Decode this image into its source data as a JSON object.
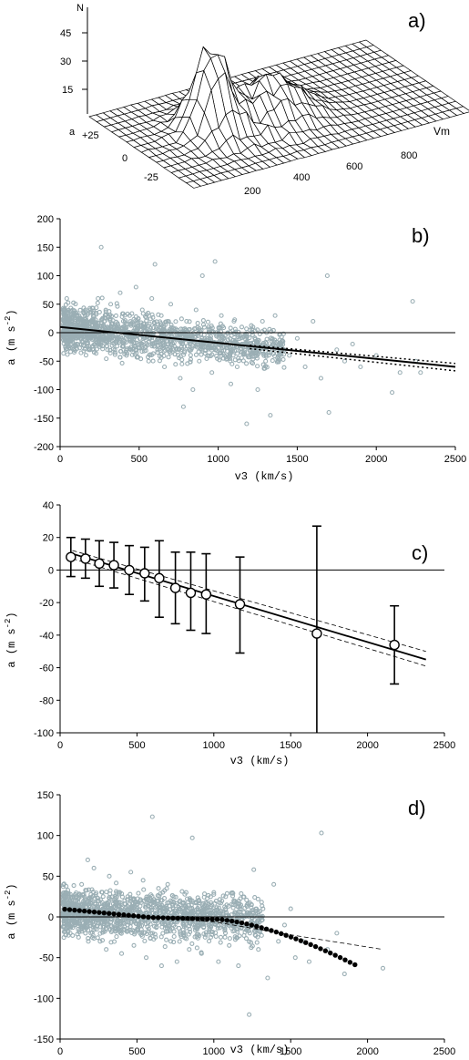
{
  "chart_data": [
    {
      "type": "surface",
      "panel_label": "a)",
      "axis_labels": {
        "z": "N",
        "y": "a",
        "x": "Vm"
      },
      "z_ticks": [
        "45",
        "30",
        "15"
      ],
      "y_ticks": [
        "+25",
        "0",
        "-25"
      ],
      "x_ticks": [
        "200",
        "400",
        "600",
        "800"
      ],
      "description_values": {
        "z_peak": 48,
        "x_peak": 300,
        "y_peak": 5
      }
    },
    {
      "type": "scatter",
      "panel_label": "b)",
      "xlabel": "v3  (km/s)",
      "ylabel": "a  (m s",
      "ylabel_exp": "-2",
      "ylabel_close": ")",
      "xlim": [
        0,
        2500
      ],
      "ylim": [
        -200,
        200
      ],
      "x_ticks": [
        "0",
        "500",
        "1000",
        "1500",
        "2000",
        "2500"
      ],
      "y_ticks": [
        "200",
        "150",
        "100",
        "50",
        "0",
        "-50",
        "-100",
        "-150",
        "-200"
      ],
      "point_color": "#9aaeb4",
      "fit_line": {
        "x": [
          0,
          2500
        ],
        "y": [
          10,
          -60
        ]
      },
      "confidence_upper": {
        "x": [
          1200,
          2500
        ],
        "y": [
          -22,
          -54
        ]
      },
      "confidence_lower": {
        "x": [
          1200,
          2500
        ],
        "y": [
          -28,
          -67
        ]
      },
      "points": [
        [
          40,
          20
        ],
        [
          60,
          -5
        ],
        [
          80,
          10
        ],
        [
          100,
          5
        ],
        [
          120,
          30
        ],
        [
          140,
          -15
        ],
        [
          160,
          40
        ],
        [
          180,
          0
        ],
        [
          200,
          20
        ],
        [
          220,
          -20
        ],
        [
          240,
          60
        ],
        [
          260,
          150
        ],
        [
          280,
          10
        ],
        [
          300,
          -30
        ],
        [
          320,
          50
        ],
        [
          340,
          5
        ],
        [
          360,
          -10
        ],
        [
          380,
          70
        ],
        [
          400,
          20
        ],
        [
          420,
          -40
        ],
        [
          440,
          30
        ],
        [
          460,
          0
        ],
        [
          480,
          80
        ],
        [
          500,
          -20
        ],
        [
          520,
          40
        ],
        [
          540,
          10
        ],
        [
          560,
          -50
        ],
        [
          580,
          60
        ],
        [
          600,
          120
        ],
        [
          620,
          -10
        ],
        [
          640,
          30
        ],
        [
          660,
          -60
        ],
        [
          680,
          20
        ],
        [
          700,
          50
        ],
        [
          720,
          -30
        ],
        [
          740,
          0
        ],
        [
          760,
          -80
        ],
        [
          780,
          -130
        ],
        [
          800,
          20
        ],
        [
          820,
          -20
        ],
        [
          840,
          -100
        ],
        [
          860,
          40
        ],
        [
          880,
          -50
        ],
        [
          900,
          100
        ],
        [
          920,
          -30
        ],
        [
          940,
          10
        ],
        [
          960,
          -70
        ],
        [
          980,
          125
        ],
        [
          1000,
          -20
        ],
        [
          1020,
          30
        ],
        [
          1040,
          -40
        ],
        [
          1060,
          0
        ],
        [
          1080,
          -90
        ],
        [
          1100,
          20
        ],
        [
          1120,
          -60
        ],
        [
          1150,
          -20
        ],
        [
          1180,
          -160
        ],
        [
          1200,
          -30
        ],
        [
          1220,
          10
        ],
        [
          1250,
          -100
        ],
        [
          1280,
          20
        ],
        [
          1300,
          -50
        ],
        [
          1330,
          -145
        ],
        [
          1360,
          30
        ],
        [
          1400,
          -20
        ],
        [
          1450,
          -40
        ],
        [
          1500,
          -10
        ],
        [
          1550,
          -60
        ],
        [
          1600,
          20
        ],
        [
          1650,
          -80
        ],
        [
          1690,
          100
        ],
        [
          1700,
          -140
        ],
        [
          1750,
          -30
        ],
        [
          1800,
          -50
        ],
        [
          1850,
          -20
        ],
        [
          1900,
          -60
        ],
        [
          2000,
          -40
        ],
        [
          2100,
          -105
        ],
        [
          2150,
          -70
        ],
        [
          2230,
          55
        ],
        [
          2250,
          -50
        ],
        [
          2280,
          -70
        ]
      ]
    },
    {
      "type": "errorbar",
      "panel_label": "c)",
      "xlabel": "v3   (km/s)",
      "ylabel": "a  (m s",
      "ylabel_exp": "-2",
      "ylabel_close": ")",
      "xlim": [
        0,
        2500
      ],
      "ylim": [
        -100,
        40
      ],
      "x_ticks": [
        "0",
        "500",
        "1000",
        "1500",
        "2000",
        "2500"
      ],
      "y_ticks": [
        "40",
        "20",
        "0",
        "-20",
        "-40",
        "-60",
        "-80",
        "-100"
      ],
      "x": [
        70,
        165,
        255,
        350,
        450,
        550,
        645,
        750,
        850,
        950,
        1170,
        1670,
        2175
      ],
      "y": [
        8,
        7,
        4,
        3,
        0,
        -2,
        -5,
        -11,
        -14,
        -15,
        -21,
        -39,
        -46
      ],
      "err_lo": [
        -4,
        -5,
        -10,
        -11,
        -15,
        -19,
        -29,
        -33,
        -37,
        -39,
        -51,
        -100,
        -70
      ],
      "err_hi": [
        20,
        19,
        18,
        17,
        15,
        14,
        18,
        11,
        11,
        10,
        8,
        27,
        -22
      ],
      "fit_line": {
        "x": [
          80,
          2380
        ],
        "y": [
          10,
          -55
        ]
      },
      "conf_upper": {
        "x": [
          80,
          2380
        ],
        "y": [
          12,
          -50
        ]
      },
      "conf_lower": {
        "x": [
          80,
          2380
        ],
        "y": [
          7,
          -59
        ]
      }
    },
    {
      "type": "scatter",
      "panel_label": "d)",
      "xlabel": "v3   (km/s)",
      "ylabel": "a  (m s",
      "ylabel_exp": "-2",
      "ylabel_close": ")",
      "xlim": [
        0,
        2500
      ],
      "ylim": [
        -150,
        150
      ],
      "x_ticks": [
        "0",
        "500",
        "1000",
        "1500",
        "2000",
        "2500"
      ],
      "y_ticks": [
        "150",
        "100",
        "50",
        "0",
        "-50",
        "-100",
        "-150"
      ],
      "point_color": "#9aaeb4",
      "model_dots_x_range": [
        30,
        1930
      ],
      "model_dashed": {
        "x": [
          600,
          1000,
          1500,
          2100
        ],
        "y": [
          -1,
          -6,
          -22,
          -40
        ]
      },
      "points": [
        [
          40,
          30
        ],
        [
          60,
          -10
        ],
        [
          80,
          5
        ],
        [
          100,
          15
        ],
        [
          120,
          -25
        ],
        [
          140,
          40
        ],
        [
          160,
          0
        ],
        [
          180,
          70
        ],
        [
          200,
          -20
        ],
        [
          220,
          60
        ],
        [
          240,
          10
        ],
        [
          260,
          -30
        ],
        [
          280,
          25
        ],
        [
          300,
          -40
        ],
        [
          320,
          50
        ],
        [
          340,
          0
        ],
        [
          360,
          -15
        ],
        [
          380,
          30
        ],
        [
          400,
          -45
        ],
        [
          420,
          20
        ],
        [
          440,
          -10
        ],
        [
          460,
          55
        ],
        [
          480,
          -35
        ],
        [
          500,
          15
        ],
        [
          520,
          -20
        ],
        [
          540,
          45
        ],
        [
          560,
          -50
        ],
        [
          580,
          0
        ],
        [
          600,
          123
        ],
        [
          620,
          -25
        ],
        [
          640,
          35
        ],
        [
          660,
          -60
        ],
        [
          680,
          10
        ],
        [
          700,
          40
        ],
        [
          720,
          -30
        ],
        [
          740,
          0
        ],
        [
          760,
          -55
        ],
        [
          780,
          20
        ],
        [
          800,
          -20
        ],
        [
          820,
          30
        ],
        [
          840,
          -40
        ],
        [
          860,
          97
        ],
        [
          880,
          -10
        ],
        [
          900,
          20
        ],
        [
          920,
          -45
        ],
        [
          950,
          10
        ],
        [
          980,
          -25
        ],
        [
          1000,
          30
        ],
        [
          1030,
          -55
        ],
        [
          1060,
          0
        ],
        [
          1100,
          -35
        ],
        [
          1130,
          20
        ],
        [
          1160,
          -60
        ],
        [
          1200,
          -15
        ],
        [
          1230,
          -120
        ],
        [
          1260,
          58
        ],
        [
          1290,
          -40
        ],
        [
          1320,
          10
        ],
        [
          1350,
          -75
        ],
        [
          1390,
          40
        ],
        [
          1420,
          -30
        ],
        [
          1460,
          -10
        ],
        [
          1500,
          10
        ],
        [
          1530,
          -50
        ],
        [
          1580,
          -30
        ],
        [
          1620,
          -55
        ],
        [
          1700,
          103
        ],
        [
          1740,
          -40
        ],
        [
          1800,
          -20
        ],
        [
          1850,
          -70
        ],
        [
          2100,
          -63
        ]
      ]
    }
  ]
}
